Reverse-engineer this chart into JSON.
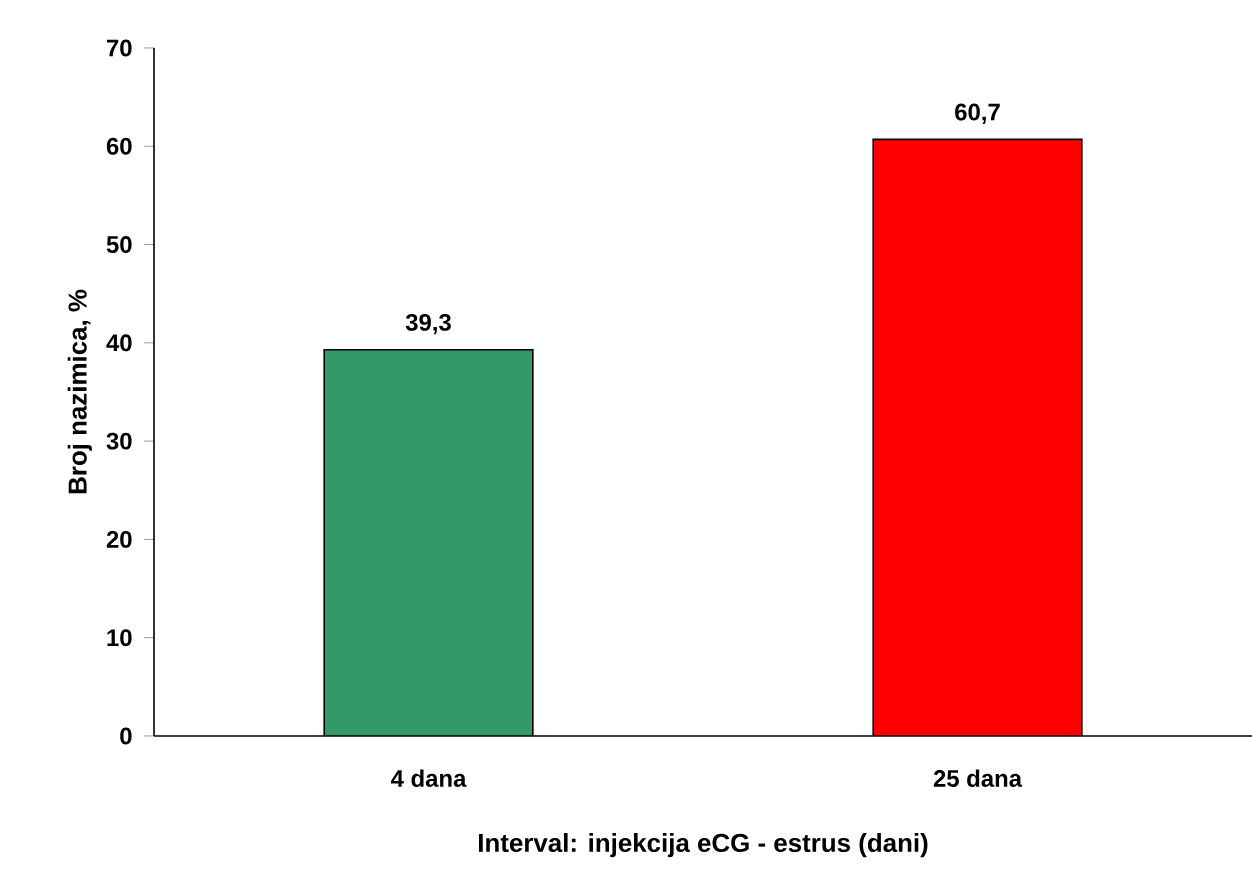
{
  "chart_data": {
    "type": "bar",
    "xlabel": "Interval: injekcija eCG - estrus (dani)",
    "ylabel": "Broj nazimica, %",
    "categories": [
      "4 dana",
      "25 dana"
    ],
    "values": [
      39.3,
      60.7
    ],
    "colors": [
      "#339966",
      "#ff0000"
    ],
    "value_labels": [
      "39,3",
      "60,7"
    ],
    "ylim": [
      0,
      70
    ],
    "yticks": [
      0,
      10,
      20,
      30,
      40,
      50,
      60,
      70
    ],
    "grid": false
  }
}
